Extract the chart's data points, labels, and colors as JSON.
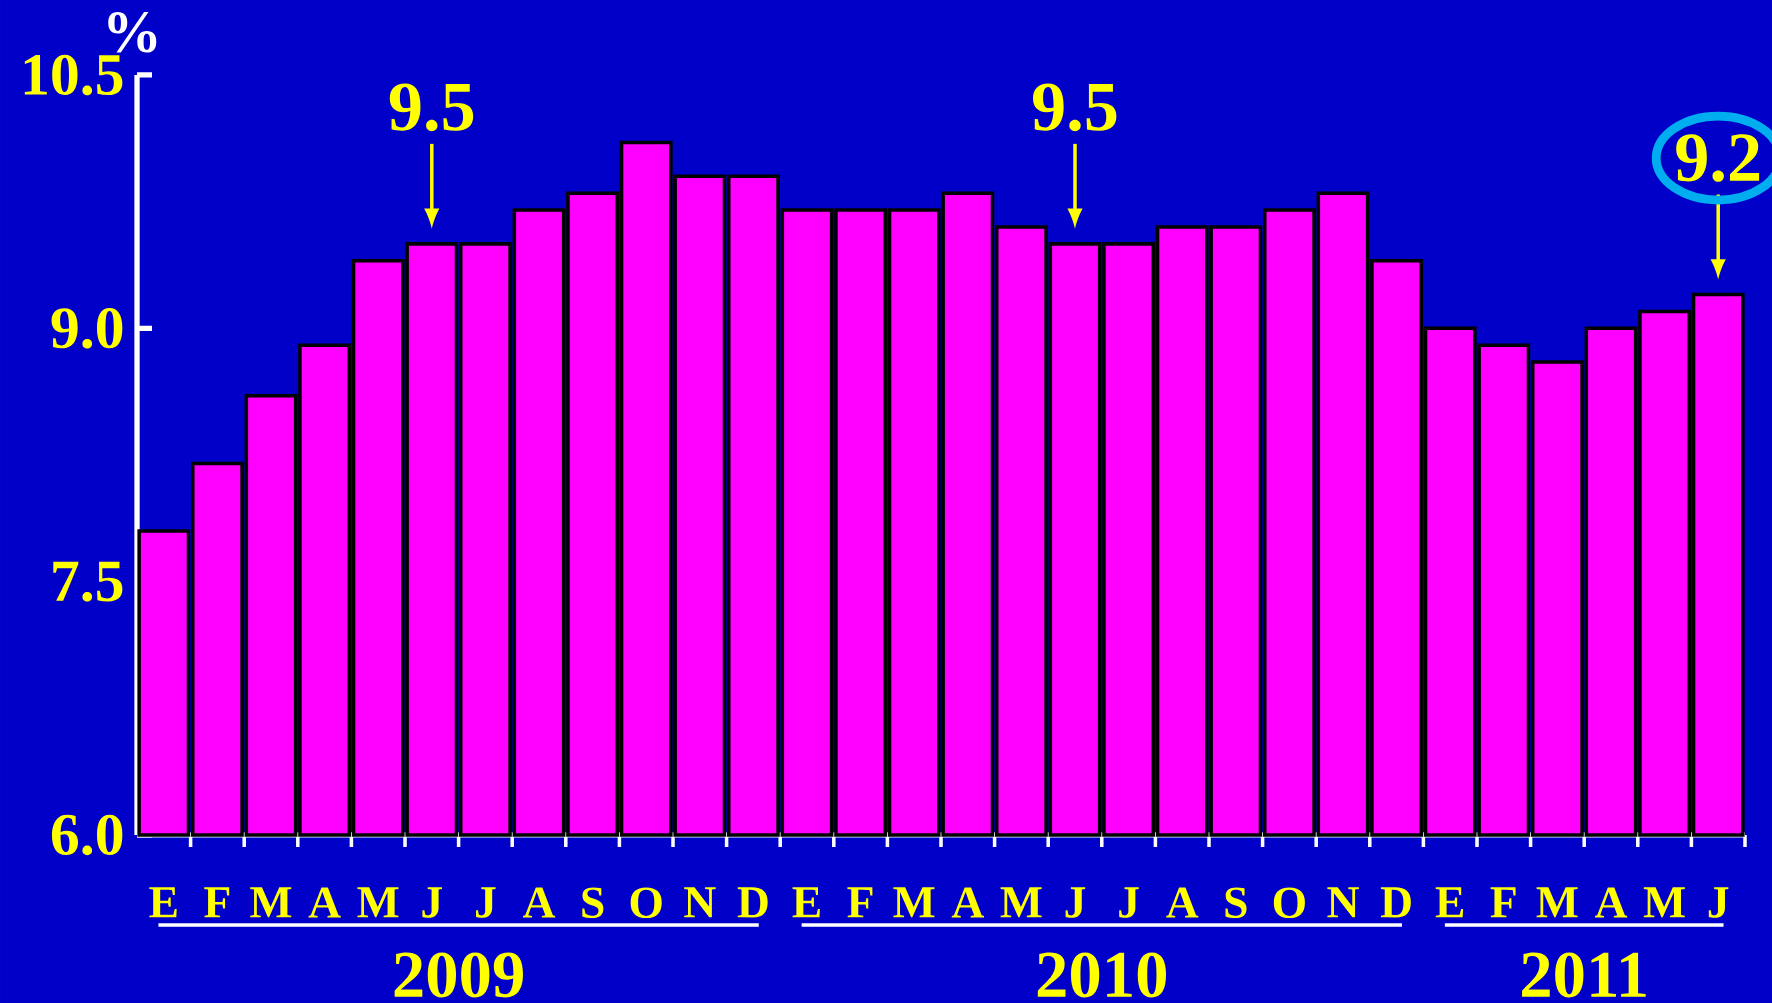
{
  "chart_data": {
    "type": "bar",
    "ylabel": "%",
    "categories": [
      "E",
      "F",
      "M",
      "A",
      "M",
      "J",
      "J",
      "A",
      "S",
      "O",
      "N",
      "D",
      "E",
      "F",
      "M",
      "A",
      "M",
      "J",
      "J",
      "A",
      "S",
      "O",
      "N",
      "D",
      "E",
      "F",
      "M",
      "A",
      "M",
      "J"
    ],
    "values": [
      7.8,
      8.2,
      8.6,
      8.9,
      9.4,
      9.5,
      9.5,
      9.7,
      9.8,
      10.1,
      9.9,
      9.9,
      9.7,
      9.7,
      9.7,
      9.8,
      9.6,
      9.5,
      9.5,
      9.6,
      9.6,
      9.7,
      9.8,
      9.4,
      9.0,
      8.9,
      8.8,
      9.0,
      9.1,
      9.2
    ],
    "value_labels": [
      null,
      null,
      null,
      null,
      null,
      "9.5",
      null,
      null,
      null,
      null,
      null,
      null,
      null,
      null,
      null,
      null,
      null,
      "9.5",
      null,
      null,
      null,
      null,
      null,
      null,
      null,
      null,
      null,
      null,
      null,
      "9.2"
    ],
    "color": "#ff00ff",
    "ylim": [
      6.0,
      10.5
    ],
    "yticks": [
      {
        "value": 6.0,
        "label": "6.0"
      },
      {
        "value": 7.5,
        "label": "7.5"
      },
      {
        "value": 9.0,
        "label": "9.0"
      },
      {
        "value": 10.5,
        "label": "10.5"
      }
    ],
    "annotations": [
      "2009",
      "2010",
      "2011"
    ],
    "grid": false
  }
}
